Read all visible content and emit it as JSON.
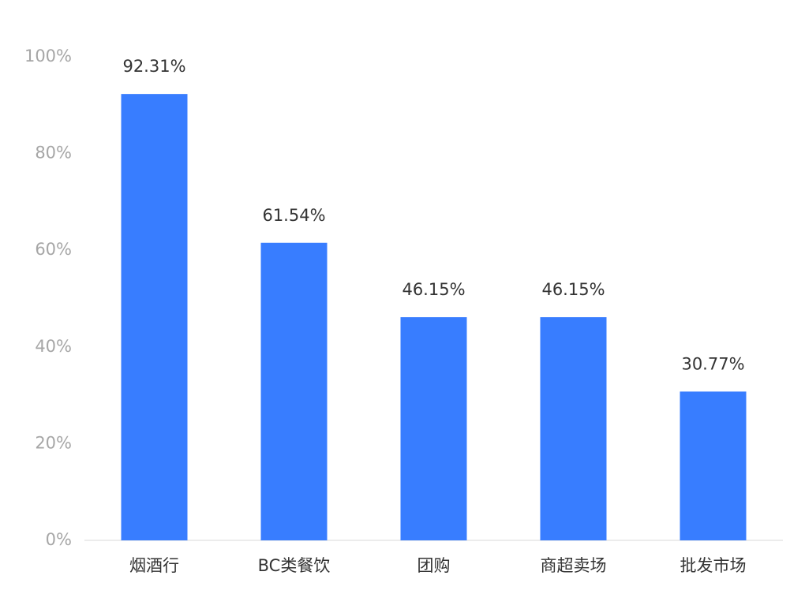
{
  "chart_data": {
    "type": "bar",
    "categories": [
      "烟酒行",
      "BC类餐饮",
      "团购",
      "商超卖场",
      "批发市场"
    ],
    "values": [
      92.31,
      61.54,
      46.15,
      46.15,
      30.77
    ],
    "value_labels": [
      "92.31%",
      "61.54%",
      "46.15%",
      "46.15%",
      "30.77%"
    ],
    "color": "#387dff",
    "ylim": [
      0,
      100
    ],
    "yticks": [
      {
        "value": 0,
        "label": "0%"
      },
      {
        "value": 20,
        "label": "20%"
      },
      {
        "value": 40,
        "label": "40%"
      },
      {
        "value": 60,
        "label": "60%"
      },
      {
        "value": 80,
        "label": "80%"
      },
      {
        "value": 100,
        "label": "100%"
      }
    ]
  }
}
